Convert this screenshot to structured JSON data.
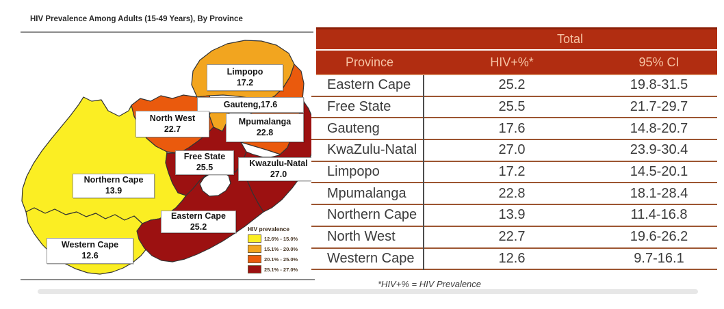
{
  "map": {
    "title": "HIV Prevalence Among Adults (15-49 Years), By Province",
    "labels": [
      {
        "key": "limpopo",
        "lines": [
          "Limpopo",
          "17.2"
        ]
      },
      {
        "key": "gauteng",
        "lines": [
          "Gauteng,17.6"
        ]
      },
      {
        "key": "north-west",
        "lines": [
          "North West",
          "22.7"
        ]
      },
      {
        "key": "mpumalanga",
        "lines": [
          "Mpumalanga",
          "22.8"
        ]
      },
      {
        "key": "free-state",
        "lines": [
          "Free State",
          "25.5"
        ]
      },
      {
        "key": "kwazulu-natal",
        "lines": [
          "Kwazulu-Natal",
          "27.0"
        ]
      },
      {
        "key": "northern-cape",
        "lines": [
          "Northern Cape",
          "13.9"
        ]
      },
      {
        "key": "eastern-cape",
        "lines": [
          "Eastern Cape",
          "25.2"
        ]
      },
      {
        "key": "western-cape",
        "lines": [
          "Western Cape",
          "12.6"
        ]
      }
    ],
    "legend": {
      "title": "HIV prevalence",
      "bins": [
        {
          "range": "12.6% - 15.0%",
          "color": "#FBEE23"
        },
        {
          "range": "15.1% - 20.0%",
          "color": "#F2A51F"
        },
        {
          "range": "20.1% - 25.0%",
          "color": "#EA5A0D"
        },
        {
          "range": "25.1% - 27.0%",
          "color": "#9C1111"
        }
      ]
    }
  },
  "table": {
    "total_label": "Total",
    "columns": [
      "Province",
      "HIV+%*",
      "95% CI"
    ],
    "rows": [
      [
        "Eastern Cape",
        "25.2",
        "19.8-31.5"
      ],
      [
        "Free State",
        "25.5",
        "21.7-29.7"
      ],
      [
        "Gauteng",
        "17.6",
        "14.8-20.7"
      ],
      [
        "KwaZulu-Natal",
        "27.0",
        "23.9-30.4"
      ],
      [
        "Limpopo",
        "17.2",
        "14.5-20.1"
      ],
      [
        "Mpumalanga",
        "22.8",
        "18.1-28.4"
      ],
      [
        "Northern Cape",
        "13.9",
        "11.4-16.8"
      ],
      [
        "North West",
        "22.7",
        "19.6-26.2"
      ],
      [
        "Western Cape",
        "12.6",
        "9.7-16.1"
      ]
    ],
    "footnote": "*HIV+% = HIV Prevalence"
  },
  "chart_data": {
    "type": "choropleth",
    "title": "HIV Prevalence Among Adults (15-49 Years), By Province",
    "series": [
      {
        "province": "Eastern Cape",
        "hiv_pct": 25.2,
        "ci_95": "19.8-31.5"
      },
      {
        "province": "Free State",
        "hiv_pct": 25.5,
        "ci_95": "21.7-29.7"
      },
      {
        "province": "Gauteng",
        "hiv_pct": 17.6,
        "ci_95": "14.8-20.7"
      },
      {
        "province": "KwaZulu-Natal",
        "hiv_pct": 27.0,
        "ci_95": "23.9-30.4"
      },
      {
        "province": "Limpopo",
        "hiv_pct": 17.2,
        "ci_95": "14.5-20.1"
      },
      {
        "province": "Mpumalanga",
        "hiv_pct": 22.8,
        "ci_95": "18.1-28.4"
      },
      {
        "province": "Northern Cape",
        "hiv_pct": 13.9,
        "ci_95": "11.4-16.8"
      },
      {
        "province": "North West",
        "hiv_pct": 22.7,
        "ci_95": "19.6-26.2"
      },
      {
        "province": "Western Cape",
        "hiv_pct": 12.6,
        "ci_95": "9.7-16.1"
      }
    ],
    "legend_bins": [
      {
        "range": "12.6% - 15.0%",
        "color": "#FBEE23"
      },
      {
        "range": "15.1% - 20.0%",
        "color": "#F2A51F"
      },
      {
        "range": "20.1% - 25.0%",
        "color": "#EA5A0D"
      },
      {
        "range": "25.1% - 27.0%",
        "color": "#9C1111"
      }
    ]
  }
}
